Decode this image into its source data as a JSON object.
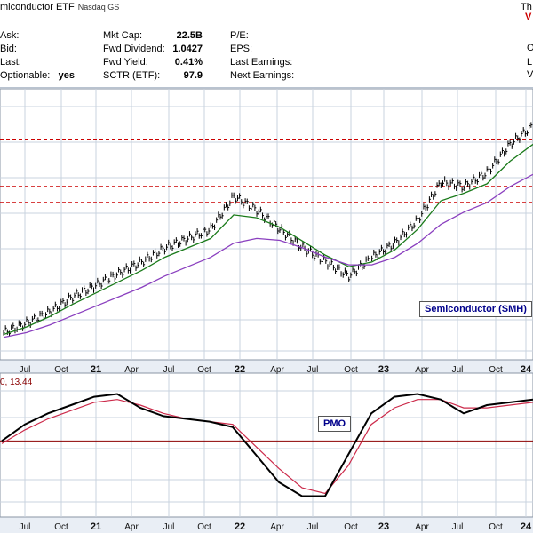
{
  "header": {
    "title": "miconductor ETF",
    "exchange": "Nasdaq GS",
    "right_top": "Th",
    "right_top2": "V",
    "right_o": "O",
    "right_l": "L",
    "right_v": "V",
    "col1": [
      {
        "label": "Ask:",
        "value": ""
      },
      {
        "label": "Bid:",
        "value": ""
      },
      {
        "label": "Last:",
        "value": ""
      },
      {
        "label": "Optionable:",
        "value": "yes"
      }
    ],
    "col2": [
      {
        "label": "Mkt Cap:",
        "value": "22.5B"
      },
      {
        "label": "Fwd Dividend:",
        "value": "1.0427"
      },
      {
        "label": "Fwd Yield:",
        "value": "0.41%"
      },
      {
        "label": "SCTR (ETF):",
        "value": "97.9"
      }
    ],
    "col3": [
      {
        "label": "P/E:"
      },
      {
        "label": "EPS:"
      },
      {
        "label": "Last Earnings:"
      },
      {
        "label": "Next Earnings:"
      }
    ]
  },
  "main_legend": "Semiconductor (SMH)",
  "pmo_legend": "PMO",
  "pmo_values": "0, 13.44",
  "axis_labels": {
    "months": [
      "Jul",
      "Oct",
      "Apr",
      "Jul",
      "Oct",
      "Apr",
      "Jul",
      "Oct",
      "Apr",
      "Jul",
      "Oct"
    ],
    "years": [
      "21",
      "22",
      "23",
      "24"
    ]
  },
  "colors": {
    "price": "#000000",
    "ema_short": "#1a7a1a",
    "ema_long": "#8a3fbf",
    "pmo": "#000000",
    "pmo_signal": "#cc2a4a",
    "resistance": "#cc0000",
    "grid": "#c9d3df"
  },
  "chart_data": [
    {
      "type": "line",
      "title": "Semiconductor (SMH)",
      "x_axis": "date",
      "x": [
        "2020-05",
        "2020-07",
        "2020-09",
        "2020-11",
        "2021-01",
        "2021-03",
        "2021-05",
        "2021-07",
        "2021-09",
        "2021-11",
        "2022-01",
        "2022-03",
        "2022-05",
        "2022-07",
        "2022-09",
        "2022-11",
        "2023-01",
        "2023-03",
        "2023-05",
        "2023-07",
        "2023-09",
        "2023-11",
        "2024-01",
        "2024-02"
      ],
      "series": [
        {
          "name": "Price",
          "values": [
            100,
            110,
            122,
            138,
            150,
            163,
            175,
            190,
            200,
            210,
            245,
            230,
            210,
            190,
            175,
            160,
            180,
            195,
            220,
            260,
            255,
            270,
            300,
            320
          ]
        },
        {
          "name": "EMA short",
          "values": [
            98,
            106,
            117,
            130,
            142,
            154,
            166,
            180,
            190,
            200,
            225,
            222,
            212,
            197,
            182,
            170,
            175,
            188,
            210,
            240,
            248,
            258,
            282,
            300
          ]
        },
        {
          "name": "EMA long",
          "values": [
            95,
            100,
            108,
            118,
            128,
            138,
            148,
            160,
            170,
            180,
            195,
            200,
            198,
            190,
            180,
            172,
            172,
            180,
            195,
            215,
            228,
            238,
            255,
            268
          ]
        }
      ],
      "horizontal_lines": [
        305,
        255,
        238
      ],
      "legend": "bottom-right"
    },
    {
      "type": "line",
      "title": "PMO",
      "series": [
        {
          "name": "PMO",
          "values": [
            0,
            6,
            10,
            13,
            16,
            17,
            12,
            9,
            8,
            7,
            5,
            -5,
            -15,
            -20,
            -20,
            -5,
            10,
            16,
            17,
            15,
            10,
            13,
            14,
            15
          ]
        },
        {
          "name": "Signal",
          "values": [
            -1,
            4,
            8,
            11,
            14,
            15,
            13,
            10,
            8,
            7,
            6,
            -2,
            -10,
            -17,
            -19,
            -9,
            6,
            12,
            15,
            15,
            12,
            12,
            13,
            14
          ]
        }
      ],
      "zero_line": 0,
      "legend": "top-center"
    }
  ]
}
